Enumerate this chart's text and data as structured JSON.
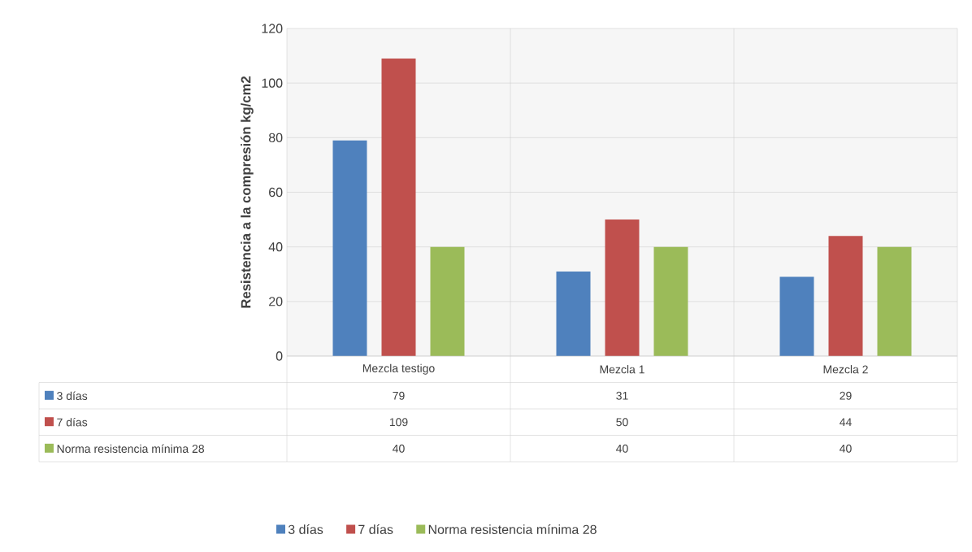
{
  "chart_data": {
    "type": "bar",
    "ylabel": "Resistencia a la compresión kg/cm2",
    "categories": [
      "Mezcla testigo",
      "Mezcla 1",
      "Mezcla 2"
    ],
    "series": [
      {
        "name": "3 días",
        "color": "#4f81bd",
        "values": [
          79,
          31,
          29
        ]
      },
      {
        "name": "7 días",
        "color": "#c0504d",
        "values": [
          109,
          50,
          44
        ]
      },
      {
        "name": "Norma resistencia mínima 28",
        "color": "#9bbb59",
        "values": [
          40,
          40,
          40
        ]
      }
    ],
    "ylim": [
      0,
      120
    ],
    "yticks": [
      0,
      20,
      40,
      60,
      80,
      100,
      120
    ],
    "grid": "y",
    "legend": "bottom",
    "data_labels": true
  }
}
